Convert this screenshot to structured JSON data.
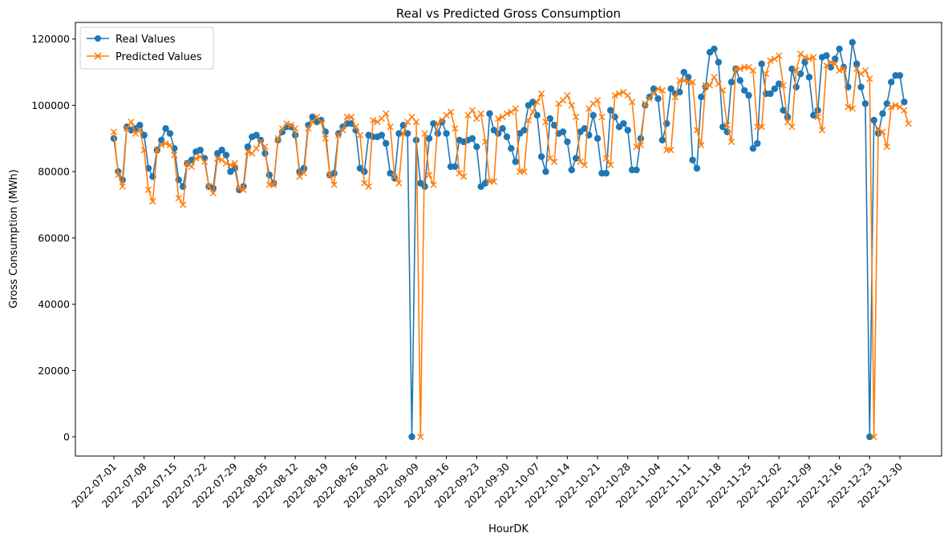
{
  "chart_data": {
    "type": "line",
    "title": "Real vs Predicted Gross Consumption",
    "xlabel": "HourDK",
    "ylabel": "Gross Consumption (MWh)",
    "x_start": "2022-07-01",
    "x_end": "2022-12-30",
    "xticks": [
      "2022-07-01",
      "2022-07-08",
      "2022-07-15",
      "2022-07-22",
      "2022-07-29",
      "2022-08-05",
      "2022-08-12",
      "2022-08-19",
      "2022-08-26",
      "2022-09-02",
      "2022-09-09",
      "2022-09-16",
      "2022-09-23",
      "2022-09-30",
      "2022-10-07",
      "2022-10-14",
      "2022-10-21",
      "2022-10-28",
      "2022-11-04",
      "2022-11-11",
      "2022-11-18",
      "2022-11-25",
      "2022-12-02",
      "2022-12-09",
      "2022-12-16",
      "2022-12-23",
      "2022-12-30"
    ],
    "yticks": [
      "0",
      "20000",
      "40000",
      "60000",
      "80000",
      "100000",
      "120000"
    ],
    "ylim": [
      -5800,
      125000
    ],
    "grid": false,
    "legend_position": "top-left",
    "series": [
      {
        "name": "Real Values",
        "color": "#1f77b4",
        "marker": "circle",
        "values": [
          90000,
          80000,
          77500,
          93500,
          92500,
          93000,
          94000,
          91000,
          81000,
          78500,
          86500,
          89500,
          93000,
          91500,
          87000,
          77500,
          75500,
          82500,
          83500,
          86000,
          86500,
          84000,
          75500,
          75000,
          85500,
          86500,
          85000,
          80000,
          81000,
          74500,
          75500,
          87500,
          90500,
          91000,
          89500,
          85500,
          79000,
          76500,
          89500,
          92000,
          93500,
          93500,
          91000,
          80000,
          81000,
          94000,
          96500,
          95000,
          95500,
          92000,
          79000,
          79500,
          91500,
          93500,
          94500,
          94500,
          92500,
          81000,
          80000,
          91000,
          90500,
          90500,
          91000,
          88500,
          79500,
          78000,
          91500,
          94000,
          91500,
          0,
          89500,
          76500,
          75500,
          90000,
          94500,
          91500,
          95000,
          91500,
          81500,
          81500,
          89500,
          89000,
          89500,
          90000,
          87500,
          75500,
          76500,
          97500,
          92500,
          91500,
          93000,
          90500,
          87000,
          83000,
          91500,
          92500,
          100000,
          101000,
          97000,
          84500,
          80000,
          96000,
          94000,
          91500,
          92000,
          89000,
          80500,
          84000,
          92000,
          93000,
          91000,
          97000,
          90000,
          79500,
          79500,
          98500,
          96500,
          93500,
          94500,
          92500,
          80500,
          80500,
          90000,
          100000,
          102500,
          105000,
          102000,
          89500,
          94500,
          105000,
          103500,
          104000,
          110000,
          108500,
          83500,
          81000,
          102500,
          105500,
          116000,
          117000,
          113000,
          93500,
          92000,
          107000,
          111000,
          107500,
          104500,
          103000,
          87000,
          88500,
          112500,
          103500,
          103500,
          105000,
          106500,
          98500,
          96500,
          111000,
          105500,
          109500,
          113000,
          108500,
          97000,
          98500,
          114500,
          115000,
          111500,
          114000,
          117000,
          111500,
          105500,
          119000,
          112500,
          105500,
          100500,
          0,
          95500,
          91500,
          97500,
          100500,
          107000,
          109000,
          109000,
          101000
        ]
      },
      {
        "name": "Predicted Values",
        "color": "#ff7f0e",
        "marker": "x",
        "values": [
          92000,
          79000,
          75500,
          93000,
          95000,
          91500,
          92500,
          86500,
          74500,
          71000,
          86500,
          88000,
          88500,
          88000,
          85000,
          72000,
          70000,
          82500,
          81500,
          84000,
          84500,
          83000,
          75500,
          73500,
          84000,
          83500,
          82500,
          82000,
          82500,
          75000,
          74500,
          86000,
          85500,
          87000,
          89000,
          87500,
          76000,
          76000,
          90000,
          93000,
          94500,
          94000,
          93000,
          78500,
          79500,
          93000,
          95000,
          96500,
          95000,
          90000,
          79000,
          76000,
          91000,
          92500,
          96500,
          96500,
          93500,
          91000,
          76500,
          75500,
          95500,
          95000,
          96000,
          97500,
          93500,
          78500,
          76500,
          91500,
          95000,
          96500,
          95000,
          0,
          91500,
          79000,
          76000,
          94500,
          95500,
          97000,
          98000,
          93000,
          79500,
          78500,
          97000,
          98500,
          96000,
          97500,
          89000,
          77000,
          77000,
          96000,
          96500,
          97500,
          98000,
          99000,
          80000,
          80000,
          95500,
          98000,
          101000,
          103500,
          95000,
          84000,
          83000,
          100500,
          101500,
          103000,
          100000,
          96500,
          83000,
          82000,
          99000,
          100500,
          101500,
          96500,
          84000,
          82000,
          103000,
          103500,
          104000,
          103000,
          101000,
          87500,
          88000,
          100500,
          102000,
          103500,
          105000,
          104500,
          86500,
          86500,
          102500,
          107500,
          107500,
          107000,
          107000,
          92500,
          88000,
          106000,
          106000,
          108500,
          106500,
          104500,
          94000,
          89000,
          111000,
          111000,
          111500,
          111500,
          110500,
          93500,
          93500,
          109500,
          113500,
          114000,
          115000,
          106000,
          95000,
          93500,
          110500,
          115500,
          114500,
          114000,
          114500,
          96500,
          92500,
          112000,
          113000,
          112500,
          110500,
          111000,
          99500,
          99000,
          111000,
          109500,
          110500,
          108000,
          0,
          93000,
          92000,
          87500,
          99500,
          100000,
          99500,
          98500,
          94500
        ]
      }
    ]
  }
}
